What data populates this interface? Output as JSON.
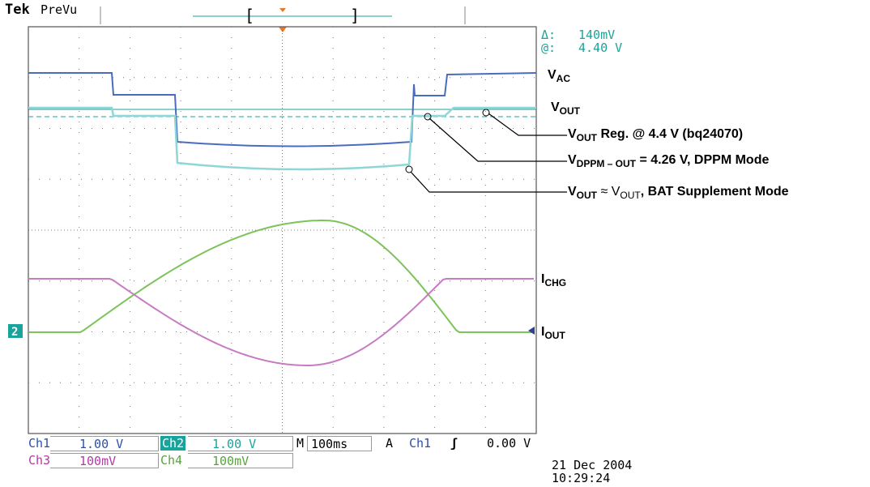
{
  "topbar": {
    "brand": "Tek",
    "mode": "PreVu"
  },
  "readouts": {
    "delta_label": "Δ:",
    "delta_value": "140mV",
    "at_label": "@:",
    "at_value": "4.40 V"
  },
  "annotations": {
    "vac": {
      "main": "V",
      "sub": "AC"
    },
    "vout": {
      "main": "V",
      "sub": "OUT"
    },
    "vout_reg": {
      "main": "V",
      "sub": "OUT",
      "rest": " Reg. @ 4.4 V (bq24070)"
    },
    "vdppm": {
      "main": "V",
      "sub": "DPPM – OUT",
      "rest": " = 4.26 V, DPPM Mode"
    },
    "vout_bat": {
      "main": "V",
      "sub": "OUT",
      "approx": " ≈ ",
      "main2": "V",
      "sub2": "OUT",
      "rest": ",  BAT Supplement Mode"
    },
    "ichg": {
      "main": "I",
      "sub": "CHG"
    },
    "iout": {
      "main": "I",
      "sub": "OUT"
    }
  },
  "ground_marker": "2",
  "status": {
    "ch1_label": "Ch1",
    "ch1_scale": "1.00 V",
    "ch2_label": "Ch2",
    "ch2_scale": "1.00 V",
    "timebase_label": "M",
    "timebase_value": "100ms",
    "trigger_label": "A",
    "trigger_source": "Ch1",
    "trigger_slope": "ʃ",
    "trigger_level": "0.00 V",
    "ch3_label": "Ch3",
    "ch3_scale": "100mV",
    "ch4_label": "Ch4",
    "ch4_scale": "100mV"
  },
  "datetime": {
    "date": "21 Dec 2004",
    "time": "10:29:24"
  },
  "colors": {
    "ch1": "#4a6cc0",
    "ch2": "#8fd6d6",
    "ch3": "#c77bc2",
    "ch4": "#7cc35a",
    "cursor": "#1aa39c",
    "grid": "#555555",
    "trigger_marker": "#e8782a"
  }
}
